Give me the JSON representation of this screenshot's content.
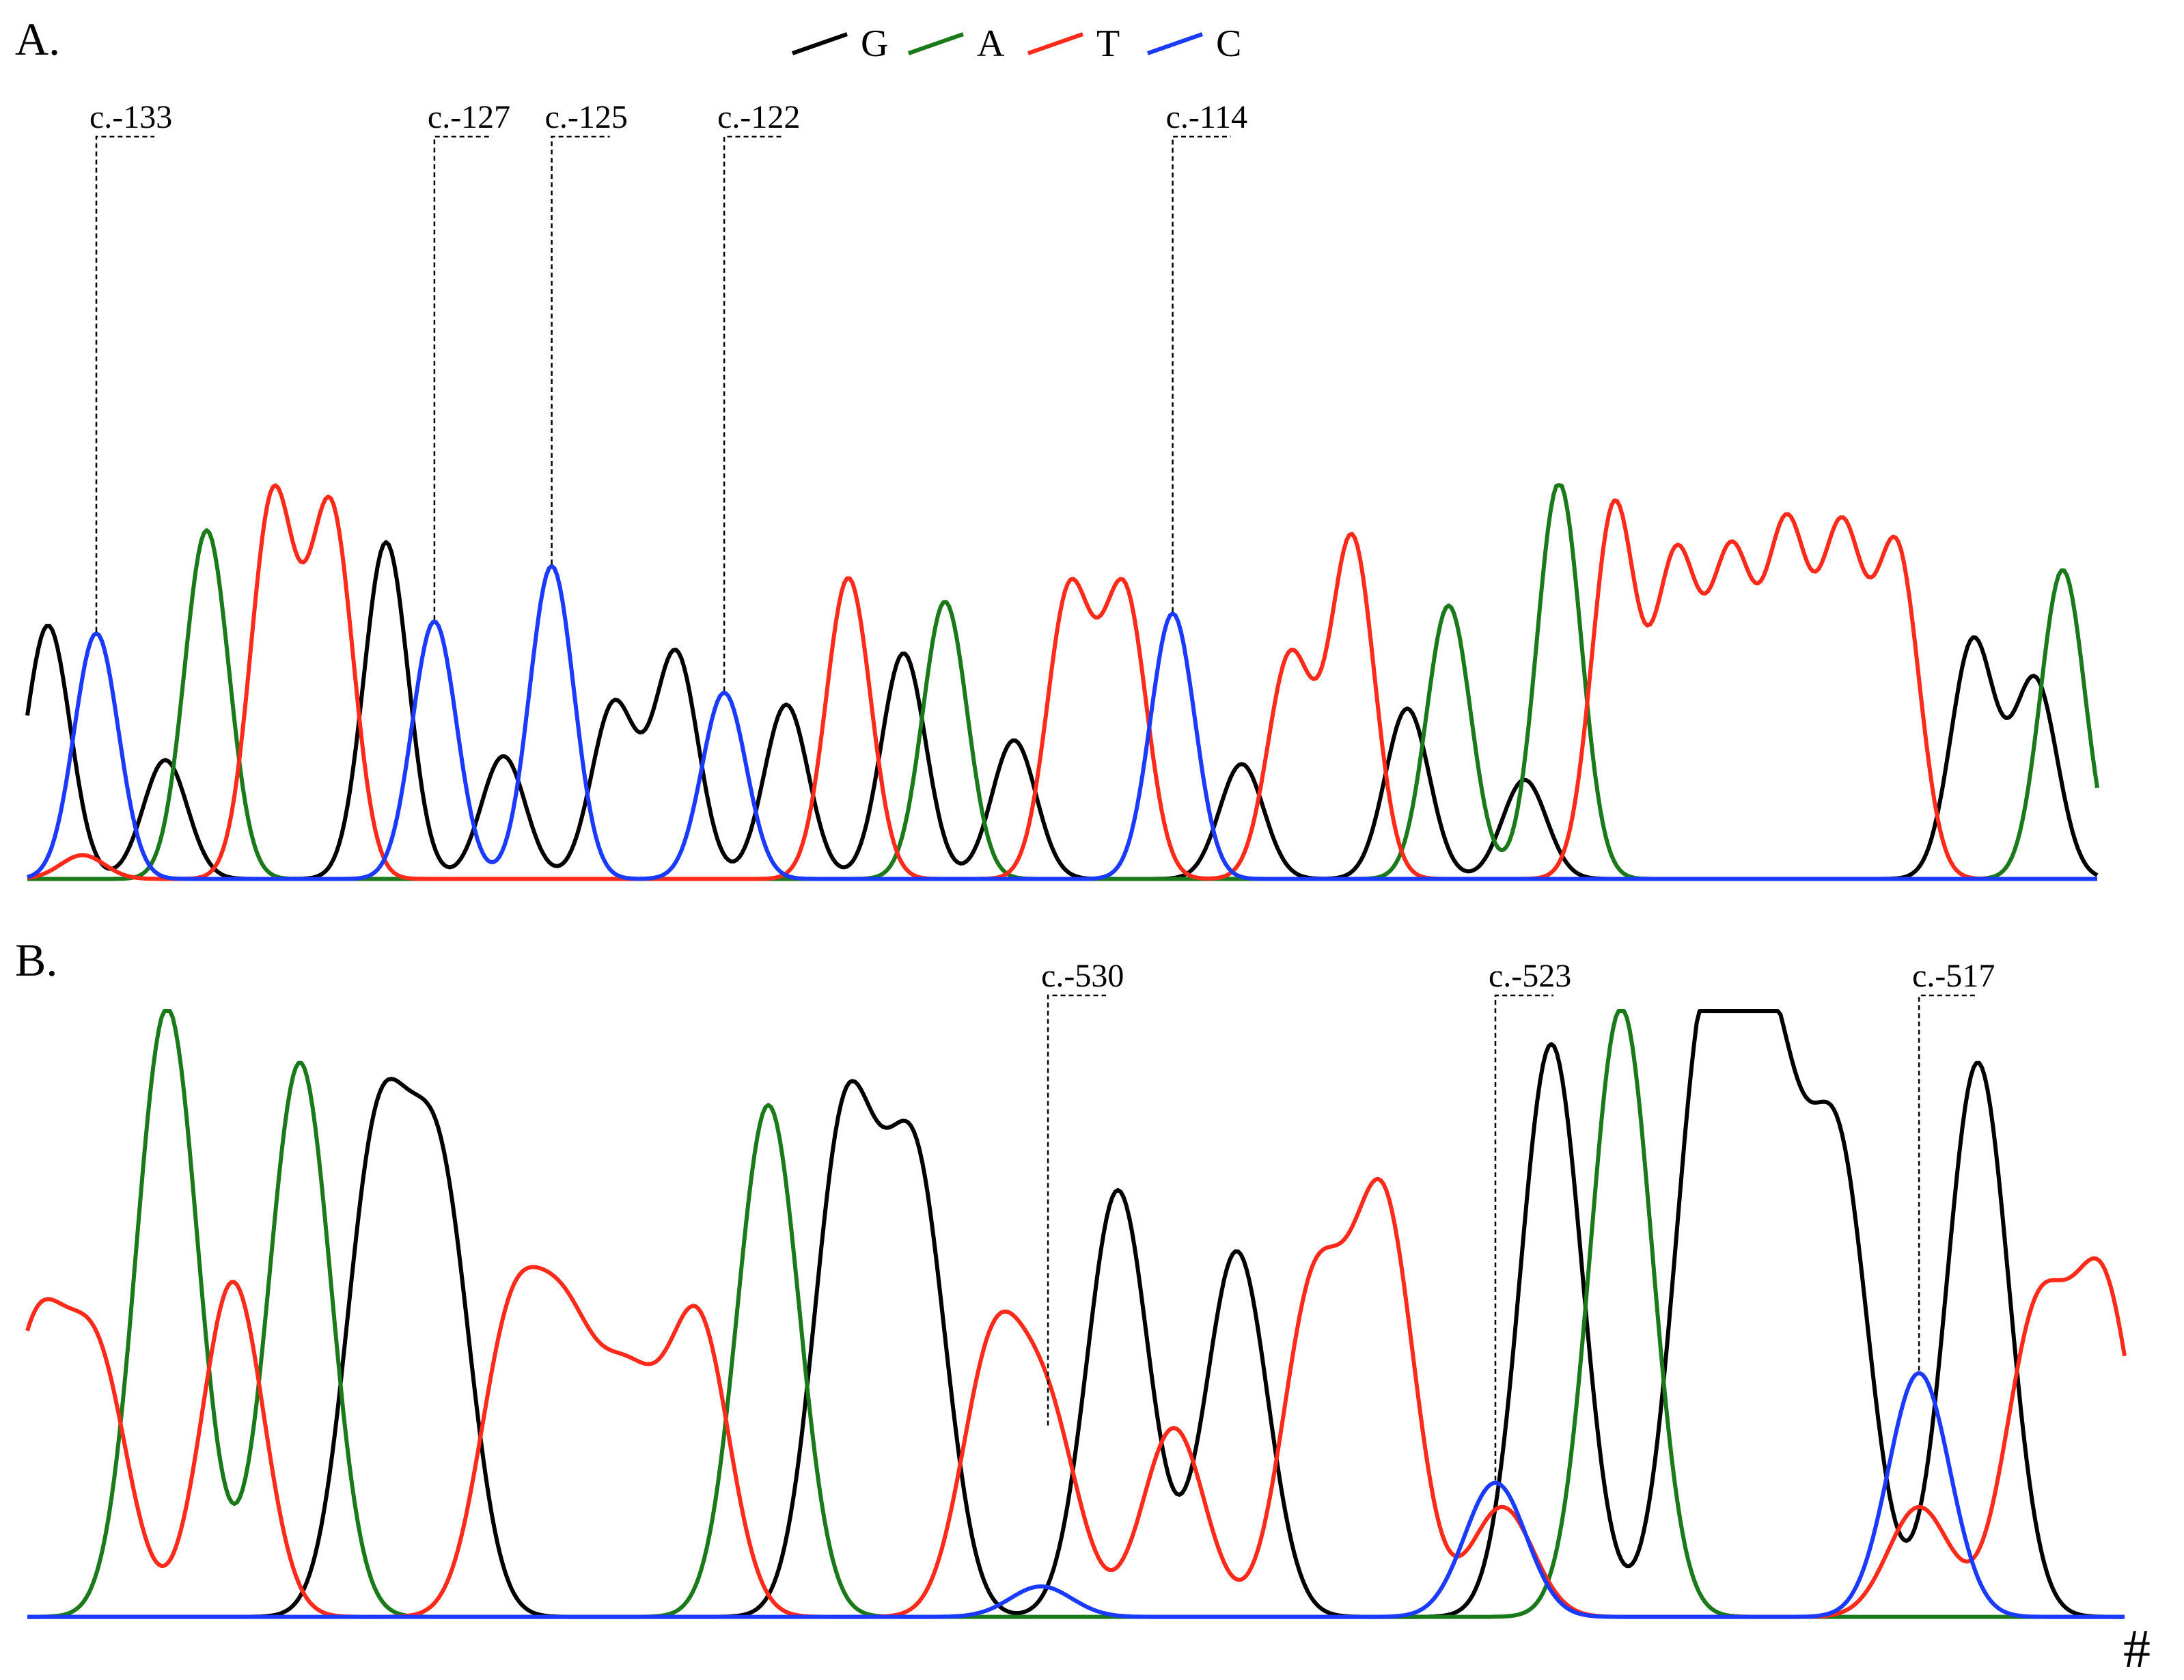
{
  "legend": [
    {
      "base": "G",
      "color": "#000000"
    },
    {
      "base": "A",
      "color": "#1a7a1a"
    },
    {
      "base": "T",
      "color": "#ff2a1a"
    },
    {
      "base": "C",
      "color": "#1a3aff"
    }
  ],
  "footnote_mark": "#",
  "chart_data": [
    {
      "type": "line",
      "panel": "A.",
      "title": "",
      "xlabel": "",
      "ylabel": "",
      "x_range": [
        0,
        1500
      ],
      "ylim": [
        0,
        100
      ],
      "grid": false,
      "legend_placement": "top-center",
      "series": [
        {
          "name": "G",
          "peaks": [
            [
              15,
              64
            ],
            [
              100,
              30
            ],
            [
              260,
              85
            ],
            [
              345,
              31
            ],
            [
              425,
              44
            ],
            [
              470,
              57
            ],
            [
              550,
              44
            ],
            [
              635,
              57
            ],
            [
              715,
              35
            ],
            [
              880,
              29
            ],
            [
              1000,
              43
            ],
            [
              1085,
              25
            ],
            [
              1410,
              60
            ],
            [
              1455,
              50
            ]
          ]
        },
        {
          "name": "A",
          "peaks": [
            [
              130,
              88
            ],
            [
              665,
              70
            ],
            [
              1030,
              69
            ],
            [
              1110,
              100
            ],
            [
              1475,
              78
            ]
          ]
        },
        {
          "name": "T",
          "peaks": [
            [
              40,
              6
            ],
            [
              178,
              96
            ],
            [
              220,
              93
            ],
            [
              595,
              76
            ],
            [
              755,
              72
            ],
            [
              795,
              72
            ],
            [
              915,
              56
            ],
            [
              960,
              86
            ],
            [
              1150,
              94
            ],
            [
              1195,
              79
            ],
            [
              1235,
              78
            ],
            [
              1275,
              85
            ],
            [
              1315,
              84
            ],
            [
              1355,
              82
            ]
          ]
        },
        {
          "name": "C",
          "peaks": [
            [
              50,
              62
            ],
            [
              295,
              65
            ],
            [
              380,
              79
            ],
            [
              505,
              47
            ],
            [
              830,
              67
            ]
          ]
        }
      ],
      "annotations": [
        {
          "label": "c.-133",
          "x": 50
        },
        {
          "label": "c.-127",
          "x": 295
        },
        {
          "label": "c.-125",
          "x": 380
        },
        {
          "label": "c.-122",
          "x": 505
        },
        {
          "label": "c.-114",
          "x": 830
        }
      ]
    },
    {
      "type": "line",
      "panel": "B.",
      "title": "",
      "xlabel": "",
      "ylabel": "",
      "x_range": [
        0,
        1500
      ],
      "ylim": [
        0,
        100
      ],
      "grid": false,
      "series": [
        {
          "name": "G",
          "peaks": [
            [
              250,
              76
            ],
            [
              295,
              70
            ],
            [
              585,
              81
            ],
            [
              635,
              73
            ],
            [
              780,
              70
            ],
            [
              865,
              60
            ],
            [
              1090,
              94
            ],
            [
              1200,
              95
            ],
            [
              1245,
              88
            ],
            [
              1295,
              75
            ],
            [
              1395,
              91
            ]
          ]
        },
        {
          "name": "A",
          "peaks": [
            [
              100,
              100
            ],
            [
              195,
              91
            ],
            [
              530,
              84
            ],
            [
              1140,
              100
            ]
          ]
        },
        {
          "name": "T",
          "peaks": [
            [
              5,
              45
            ],
            [
              50,
              41
            ],
            [
              147,
              55
            ],
            [
              345,
              45
            ],
            [
              385,
              41
            ],
            [
              430,
              34
            ],
            [
              480,
              48
            ],
            [
              690,
              42
            ],
            [
              730,
              31
            ],
            [
              820,
              31
            ],
            [
              920,
              53
            ],
            [
              970,
              67
            ],
            [
              1055,
              18
            ],
            [
              1353,
              18
            ],
            [
              1437,
              48
            ],
            [
              1485,
              53
            ]
          ]
        },
        {
          "name": "C",
          "peaks": [
            [
              725,
              5
            ],
            [
              1050,
              22
            ],
            [
              1353,
              40
            ]
          ]
        }
      ],
      "annotations": [
        {
          "label": "c.-530",
          "x": 730
        },
        {
          "label": "c.-523",
          "x": 1050
        },
        {
          "label": "c.-517",
          "x": 1353
        }
      ]
    }
  ]
}
